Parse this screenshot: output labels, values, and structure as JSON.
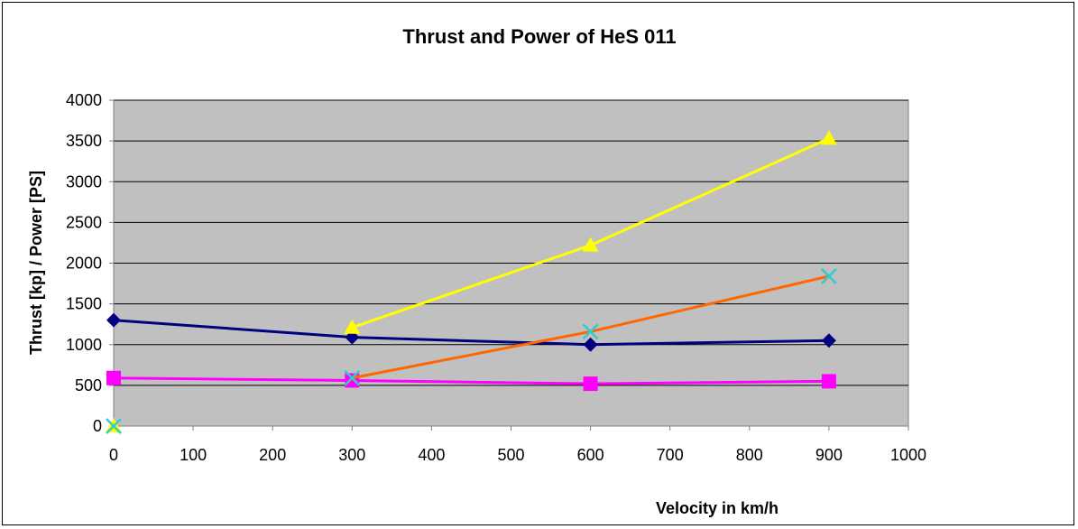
{
  "chart_data": {
    "type": "line",
    "title": "Thrust and Power of HeS 011",
    "xlabel": "Velocity in km/h",
    "ylabel": "Thrust [kp] / Power [PS]",
    "xlim": [
      0,
      1000
    ],
    "ylim": [
      0,
      4000
    ],
    "xticks": [
      0,
      100,
      200,
      300,
      400,
      500,
      600,
      700,
      800,
      900,
      1000
    ],
    "yticks": [
      0,
      500,
      1000,
      1500,
      2000,
      2500,
      3000,
      3500,
      4000
    ],
    "grid": true,
    "plot_background": "#c0c0c0",
    "legend": "none",
    "series": [
      {
        "marker": "diamond",
        "color": "#000080",
        "points": [
          [
            0,
            1300
          ],
          [
            300,
            1090
          ],
          [
            600,
            1000
          ],
          [
            900,
            1050
          ]
        ]
      },
      {
        "marker": "square",
        "color": "#ff00ff",
        "points": [
          [
            0,
            590
          ],
          [
            300,
            560
          ],
          [
            600,
            520
          ],
          [
            900,
            550
          ]
        ]
      },
      {
        "marker": "triangle",
        "color": "#ffff00",
        "points": [
          [
            0,
            0
          ],
          [
            300,
            1210
          ],
          [
            600,
            2220
          ],
          [
            900,
            3530
          ]
        ],
        "line_from_index": 1
      },
      {
        "marker": "x",
        "color": "#33cccc",
        "line_color": "#ff6600",
        "points": [
          [
            0,
            0
          ],
          [
            300,
            590
          ],
          [
            600,
            1160
          ],
          [
            900,
            1840
          ]
        ],
        "line_from_index": 1
      }
    ]
  }
}
